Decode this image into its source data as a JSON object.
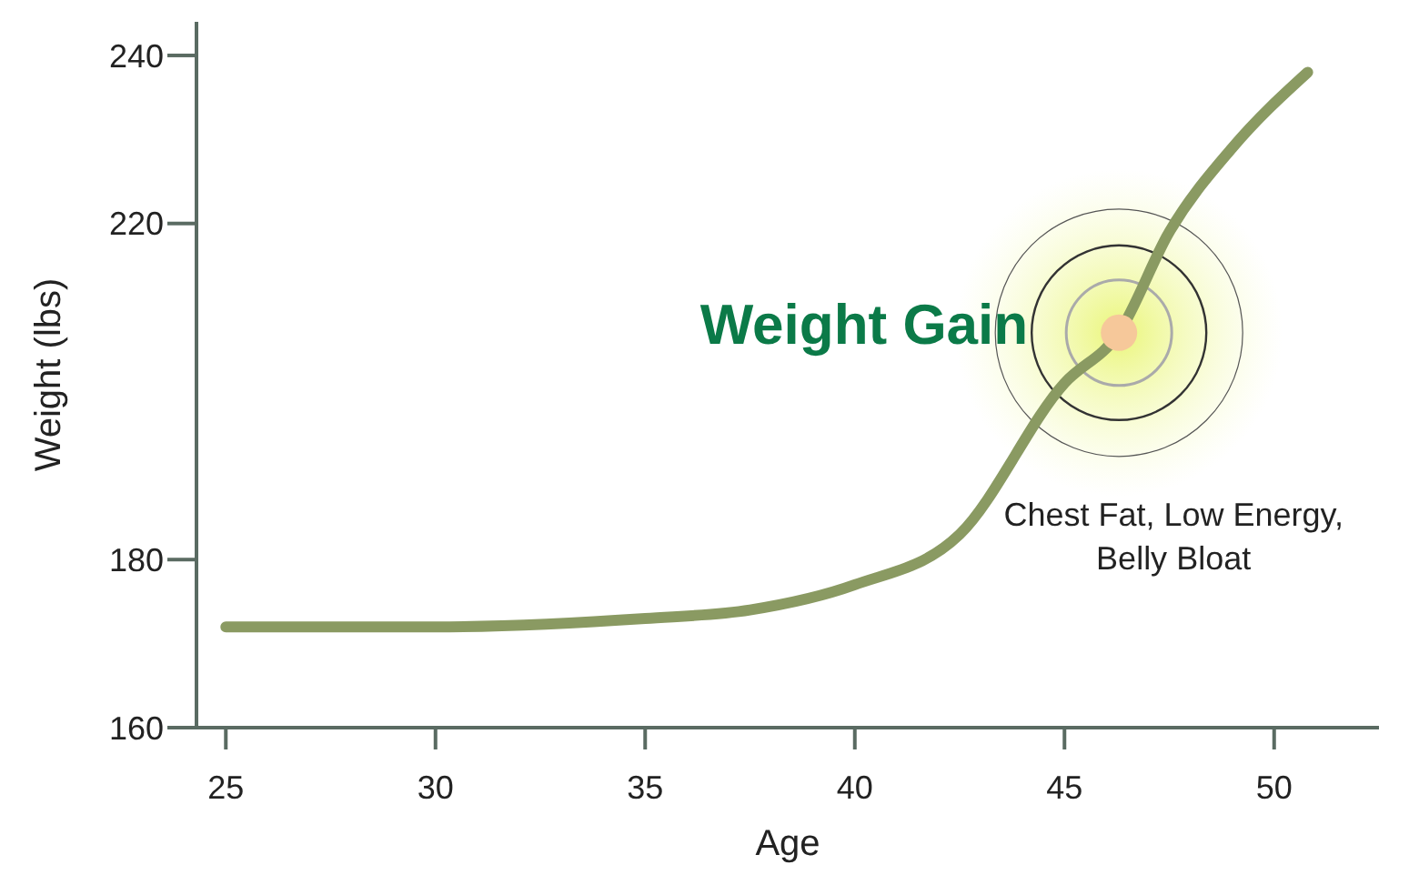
{
  "chart_data": {
    "type": "line",
    "xlabel": "Age",
    "ylabel": "Weight (lbs)",
    "x": [
      25,
      30,
      35,
      37.5,
      40,
      42.5,
      45,
      46.3,
      47.5,
      49,
      50.8
    ],
    "series": [
      {
        "color": "#8a9a62",
        "values": [
          172,
          172,
          173,
          174,
          177,
          183,
          201,
          207,
          219,
          229,
          238
        ]
      }
    ],
    "xlim": [
      24.3,
      52.5
    ],
    "ylim": [
      160,
      244
    ],
    "xticks": [
      25,
      30,
      35,
      40,
      45,
      50
    ],
    "yticks": [
      160,
      180,
      220,
      240
    ],
    "grid": false,
    "marker": "none",
    "line_style": "solid",
    "annotations": [
      {
        "text": "Weight Gain",
        "x": 46.3,
        "y": 207
      },
      "Chest Fat, Low Energy, Belly Bloat"
    ]
  }
}
